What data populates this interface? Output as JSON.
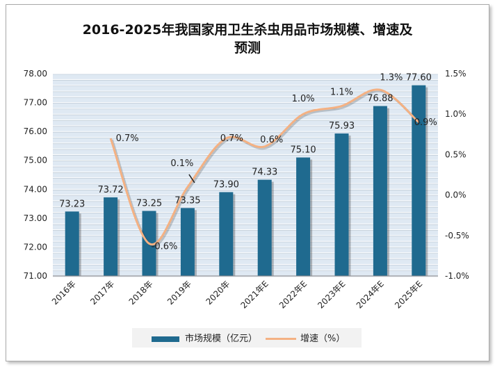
{
  "chart_data": {
    "type": "bar",
    "title_line1": "2016-2025年我国家用卫生杀虫用品市场规模、增速及",
    "title_line2": "预测",
    "categories": [
      "2016年",
      "2017年",
      "2018年",
      "2019年",
      "2020年",
      "2021年E",
      "2022年E",
      "2023年E",
      "2024年E",
      "2025年E"
    ],
    "series": [
      {
        "name": "市场规模（亿元）",
        "axis": "left",
        "values": [
          73.23,
          73.72,
          73.25,
          73.35,
          73.9,
          74.33,
          75.1,
          75.93,
          76.88,
          77.6
        ],
        "labels": [
          "73.23",
          "73.72",
          "73.25",
          "73.35",
          "73.90",
          "74.33",
          "75.10",
          "75.93",
          "76.88",
          "77.60"
        ],
        "color": "#1f6a8f"
      },
      {
        "name": "增速（%）",
        "axis": "right",
        "type": "line",
        "values": [
          null,
          0.7,
          -0.6,
          0.1,
          0.7,
          0.6,
          1.0,
          1.1,
          1.3,
          0.9
        ],
        "labels": [
          "",
          "0.7%",
          "-0.6%",
          "0.1%",
          "0.7%",
          "0.6%",
          "1.0%",
          "1.1%",
          "1.3%",
          "0.9%"
        ],
        "color": "#f4b183"
      }
    ],
    "y_left": {
      "ylim": [
        71.0,
        78.0
      ],
      "ticks": [
        "71.00",
        "72.00",
        "73.00",
        "74.00",
        "75.00",
        "76.00",
        "77.00",
        "78.00"
      ]
    },
    "y_right": {
      "ylim": [
        -1.0,
        1.5
      ],
      "ticks": [
        "-1.0%",
        "-0.5%",
        "0.0%",
        "0.5%",
        "1.0%",
        "1.5%"
      ]
    },
    "grid": true,
    "legend_position": "bottom"
  }
}
